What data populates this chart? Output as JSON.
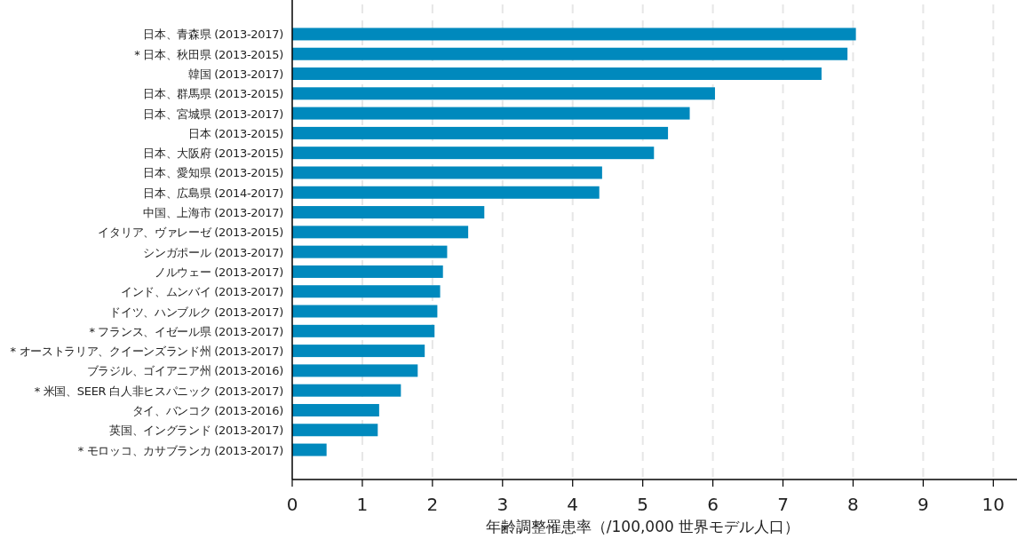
{
  "chart_data": {
    "type": "bar",
    "orientation": "horizontal",
    "xlabel": "年齢調整罹患率（/100,000 世界モデル人口）",
    "categories": [
      "日本、青森県 (2013-2017)",
      "* 日本、秋田県 (2013-2015)",
      "韓国 (2013-2017)",
      "日本、群馬県 (2013-2015)",
      "日本、宮城県 (2013-2017)",
      "日本 (2013-2015)",
      "日本、大阪府 (2013-2015)",
      "日本、愛知県 (2013-2015)",
      "日本、広島県 (2014-2017)",
      "中国、上海市 (2013-2017)",
      "イタリア、ヴァレーゼ (2013-2015)",
      "シンガポール (2013-2017)",
      "ノルウェー (2013-2017)",
      "インド、ムンバイ (2013-2017)",
      "ドイツ、ハンブルク (2013-2017)",
      "* フランス、イゼール県 (2013-2017)",
      "* オーストラリア、クイーンズランド州 (2013-2017)",
      "ブラジル、ゴイアニア州 (2013-2016)",
      "* 米国、SEER 白人非ヒスパニック (2013-2017)",
      "タイ、バンコク (2013-2016)",
      "英国、イングランド (2013-2017)",
      "* モロッコ、カサブランカ (2013-2017)"
    ],
    "values": [
      8.04,
      7.92,
      7.55,
      6.03,
      5.67,
      5.36,
      5.16,
      4.42,
      4.38,
      2.74,
      2.51,
      2.21,
      2.15,
      2.11,
      2.07,
      2.03,
      1.89,
      1.79,
      1.55,
      1.24,
      1.22,
      0.49
    ],
    "color": "#0089bd",
    "xlim": [
      0,
      10.3
    ],
    "xticks": [
      0,
      1,
      2,
      3,
      4,
      5,
      6,
      7,
      8,
      9,
      10
    ],
    "grid": "x"
  }
}
